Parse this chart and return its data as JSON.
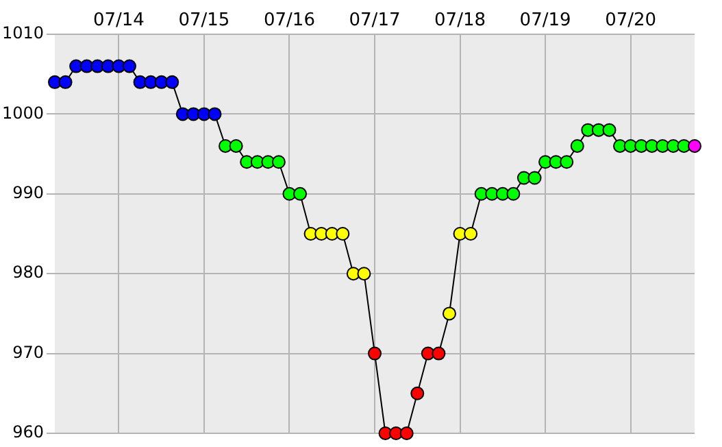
{
  "chart_data": {
    "type": "line",
    "xlim": [
      "--07-13T06:00",
      "--07-20T18:00"
    ],
    "xticks": [
      {
        "value": "--07-14",
        "label": "07/14"
      },
      {
        "value": "--07-15",
        "label": "07/15"
      },
      {
        "value": "--07-16",
        "label": "07/16"
      },
      {
        "value": "--07-17",
        "label": "07/17"
      },
      {
        "value": "--07-18",
        "label": "07/18"
      },
      {
        "value": "--07-19",
        "label": "07/19"
      },
      {
        "value": "--07-20",
        "label": "07/20"
      }
    ],
    "ylim": [
      960,
      1010
    ],
    "yticks": [
      960,
      970,
      980,
      990,
      1000,
      1010
    ],
    "grid": true,
    "legend": false,
    "marker": "circle",
    "line_style": "solid",
    "series": [
      {
        "color": "#000000",
        "x": [
          "--07-13T06:00",
          "--07-13T09:00",
          "--07-13T12:00",
          "--07-13T15:00",
          "--07-13T18:00",
          "--07-13T21:00",
          "--07-14T00:00",
          "--07-14T03:00",
          "--07-14T06:00",
          "--07-14T09:00",
          "--07-14T12:00",
          "--07-14T15:00",
          "--07-14T18:00",
          "--07-14T21:00",
          "--07-15T00:00",
          "--07-15T03:00",
          "--07-15T06:00",
          "--07-15T09:00",
          "--07-15T12:00",
          "--07-15T15:00",
          "--07-15T18:00",
          "--07-15T21:00",
          "--07-16T00:00",
          "--07-16T03:00",
          "--07-16T06:00",
          "--07-16T09:00",
          "--07-16T12:00",
          "--07-16T15:00",
          "--07-16T18:00",
          "--07-16T21:00",
          "--07-17T00:00",
          "--07-17T03:00",
          "--07-17T06:00",
          "--07-17T09:00",
          "--07-17T12:00",
          "--07-17T15:00",
          "--07-17T18:00",
          "--07-17T21:00",
          "--07-18T00:00",
          "--07-18T03:00",
          "--07-18T06:00",
          "--07-18T09:00",
          "--07-18T12:00",
          "--07-18T15:00",
          "--07-18T18:00",
          "--07-18T21:00",
          "--07-19T00:00",
          "--07-19T03:00",
          "--07-19T06:00",
          "--07-19T09:00",
          "--07-19T12:00",
          "--07-19T15:00",
          "--07-19T18:00",
          "--07-19T21:00",
          "--07-20T00:00",
          "--07-20T03:00",
          "--07-20T06:00",
          "--07-20T09:00",
          "--07-20T12:00",
          "--07-20T15:00",
          "--07-20T18:00"
        ],
        "values": [
          1004,
          1004,
          1006,
          1006,
          1006,
          1006,
          1006,
          1006,
          1004,
          1004,
          1004,
          1004,
          1000,
          1000,
          1000,
          1000,
          996,
          996,
          994,
          994,
          994,
          994,
          990,
          990,
          985,
          985,
          985,
          985,
          980,
          980,
          970,
          960,
          960,
          960,
          965,
          970,
          970,
          975,
          985,
          985,
          990,
          990,
          990,
          990,
          992,
          992,
          994,
          994,
          994,
          996,
          998,
          998,
          998,
          996,
          996,
          996,
          996,
          996,
          996,
          996,
          996
        ],
        "colors": [
          "#0000ff",
          "#0000ff",
          "#0000ff",
          "#0000ff",
          "#0000ff",
          "#0000ff",
          "#0000ff",
          "#0000ff",
          "#0000ff",
          "#0000ff",
          "#0000ff",
          "#0000ff",
          "#0000ff",
          "#0000ff",
          "#0000ff",
          "#0000ff",
          "#00ff00",
          "#00ff00",
          "#00ff00",
          "#00ff00",
          "#00ff00",
          "#00ff00",
          "#00ff00",
          "#00ff00",
          "#ffff00",
          "#ffff00",
          "#ffff00",
          "#ffff00",
          "#ffff00",
          "#ffff00",
          "#ff0000",
          "#ff0000",
          "#ff0000",
          "#ff0000",
          "#ff0000",
          "#ff0000",
          "#ff0000",
          "#ffff00",
          "#ffff00",
          "#ffff00",
          "#00ff00",
          "#00ff00",
          "#00ff00",
          "#00ff00",
          "#00ff00",
          "#00ff00",
          "#00ff00",
          "#00ff00",
          "#00ff00",
          "#00ff00",
          "#00ff00",
          "#00ff00",
          "#00ff00",
          "#00ff00",
          "#00ff00",
          "#00ff00",
          "#00ff00",
          "#00ff00",
          "#00ff00",
          "#00ff00",
          "#ff00ff"
        ]
      }
    ]
  }
}
